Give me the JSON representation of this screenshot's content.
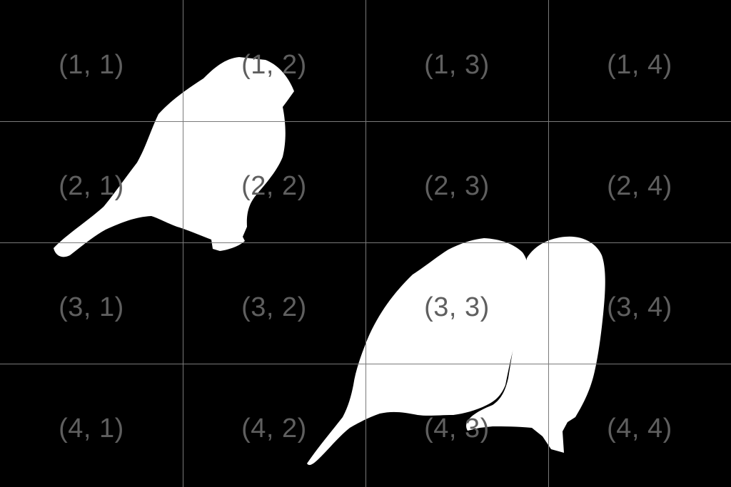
{
  "image": {
    "background_color": "#000000",
    "silhouette_color": "#ffffff",
    "grid_color": "#7a7a7a",
    "label_color": "#5f5f5f",
    "grid": {
      "rows": 4,
      "cols": 4
    }
  },
  "labels": [
    [
      "(1, 1)",
      "(1, 2)",
      "(1, 3)",
      "(1, 4)"
    ],
    [
      "(2, 1)",
      "(2, 2)",
      "(2, 3)",
      "(2, 4)"
    ],
    [
      "(3, 1)",
      "(3, 2)",
      "(3, 3)",
      "(3, 4)"
    ],
    [
      "(4, 1)",
      "(4, 2)",
      "(4, 3)",
      "(4, 4)"
    ]
  ]
}
